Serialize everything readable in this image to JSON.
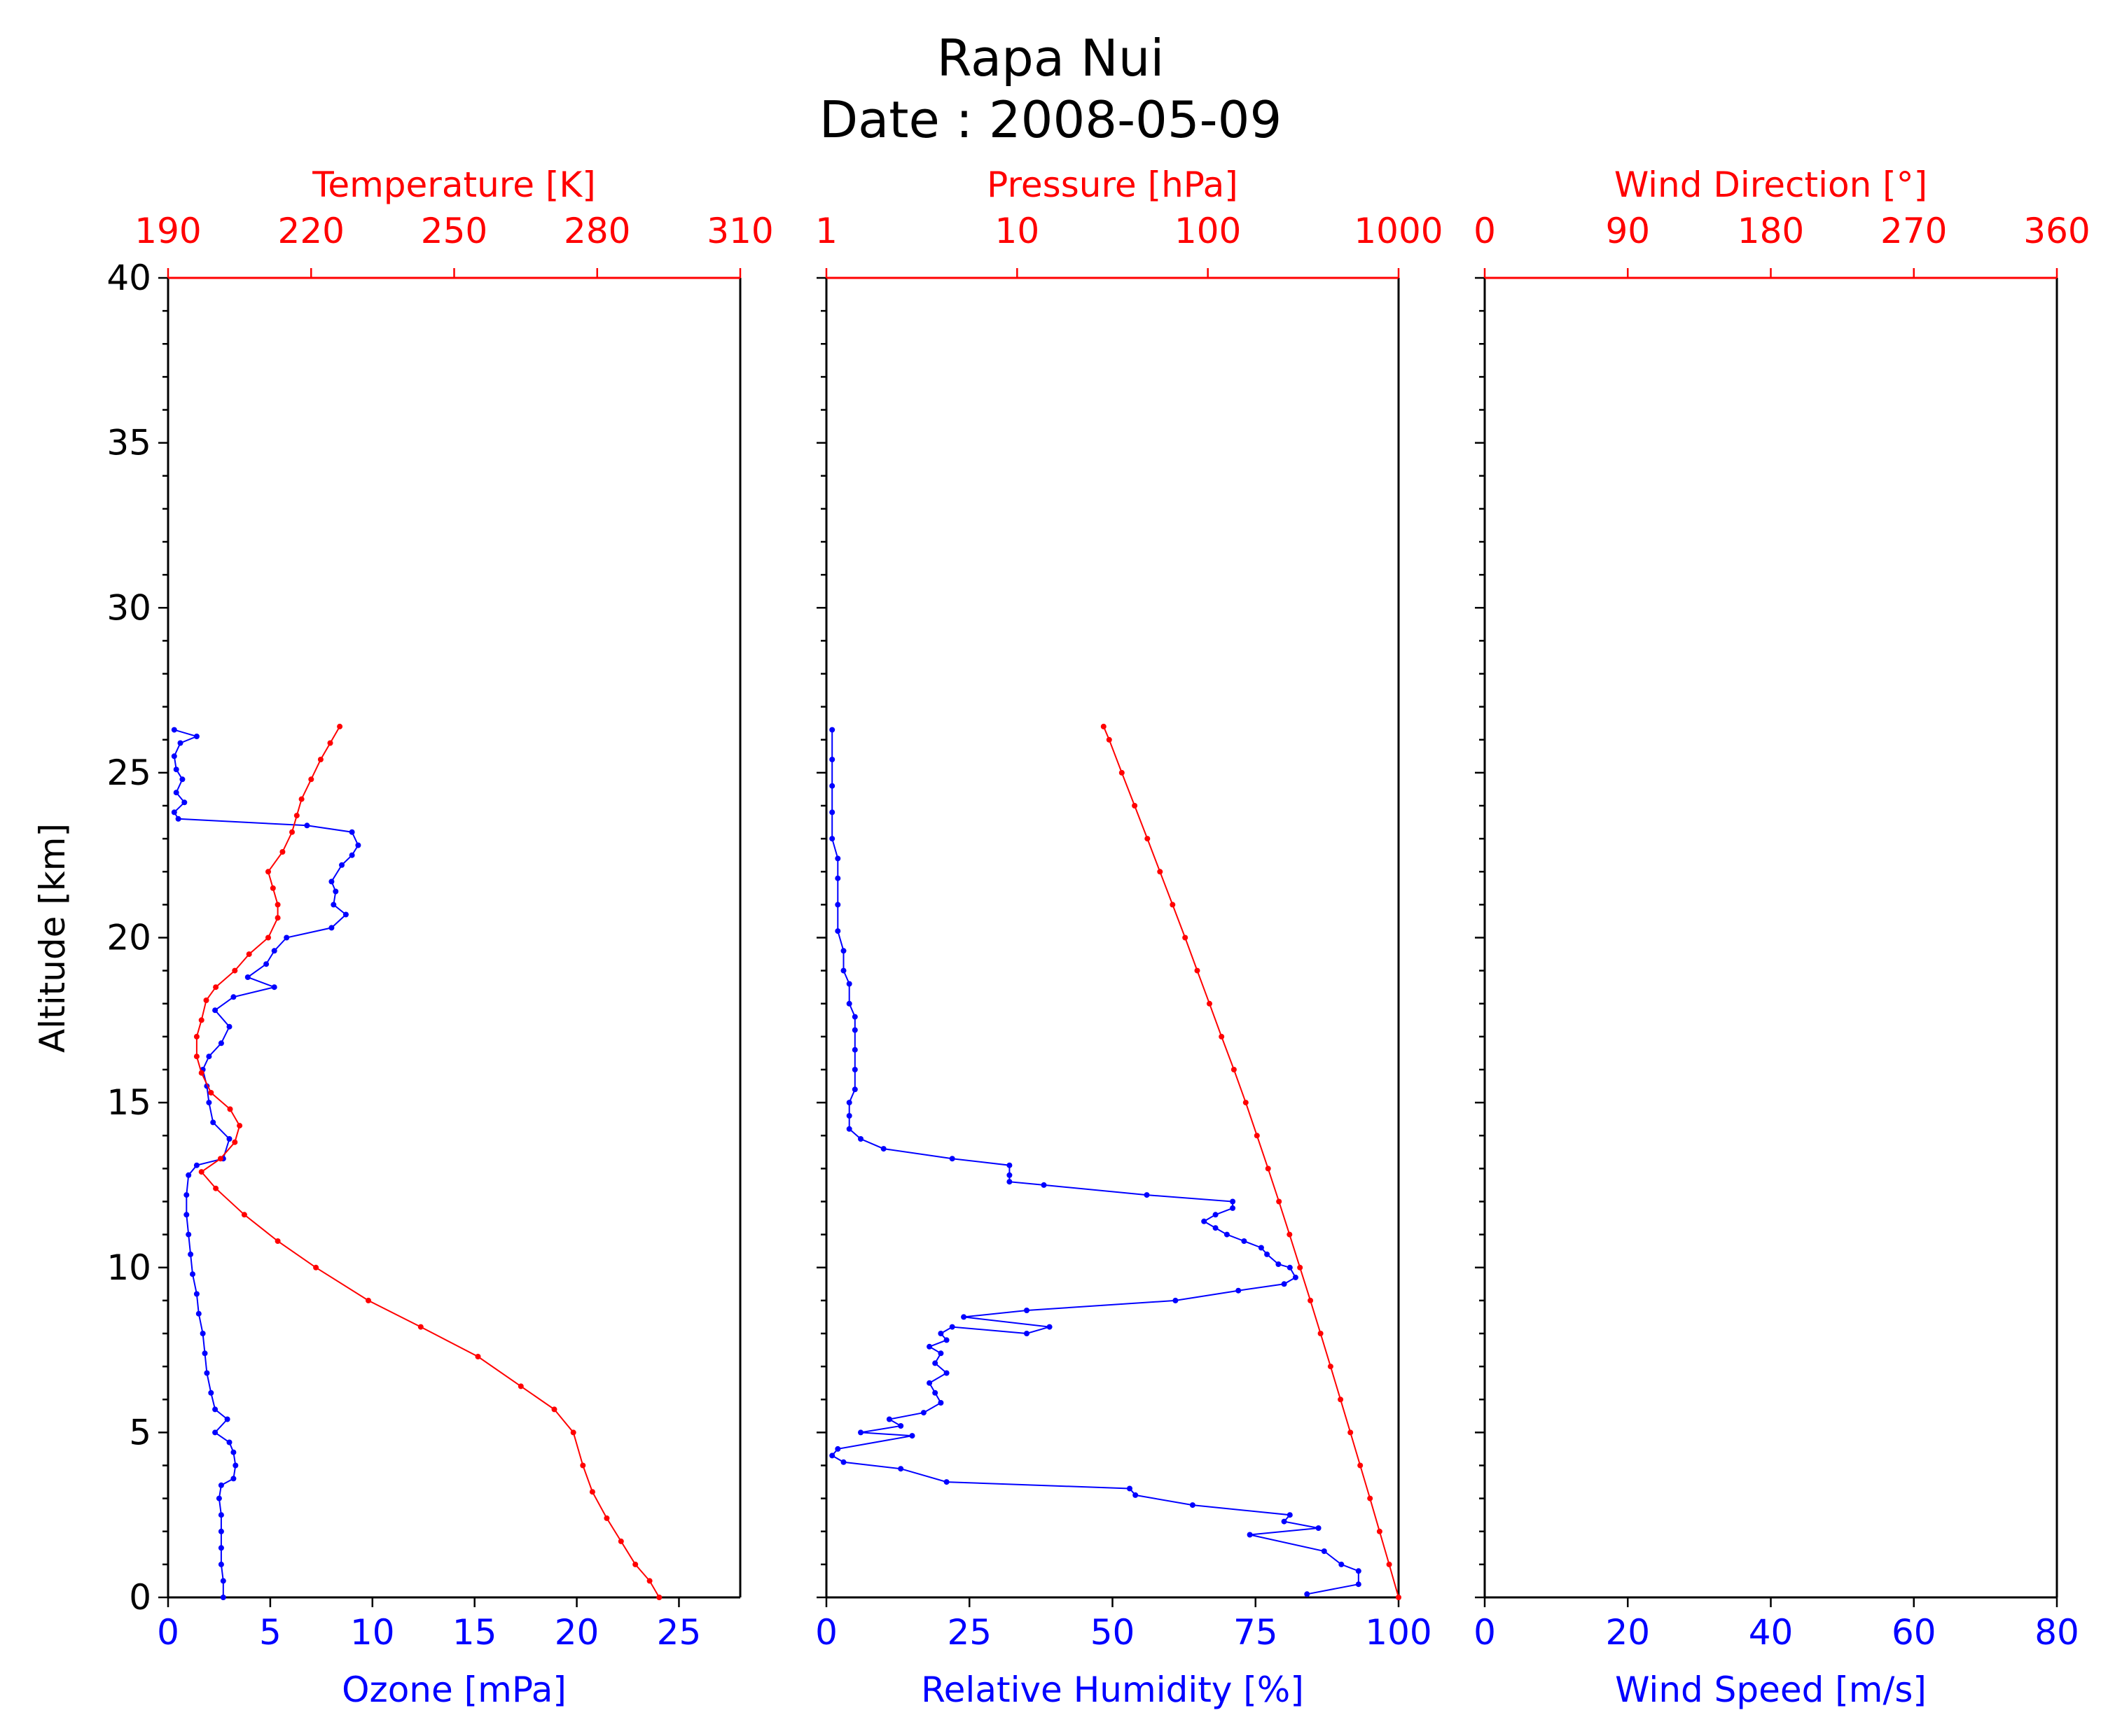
{
  "title_line1": "Rapa Nui",
  "title_line2": "Date : 2008-05-09",
  "colors": {
    "primary": "#0000ff",
    "secondary": "#ff0000",
    "axis": "#000000"
  },
  "chart_data": [
    {
      "type": "line",
      "panel": "ozone-temperature",
      "ylabel": "Altitude [km]",
      "ylim": [
        0,
        40
      ],
      "yticks": [
        0,
        5,
        10,
        15,
        20,
        25,
        30,
        35,
        40
      ],
      "bottom_axis": {
        "label": "Ozone [mPa]",
        "lim": [
          0,
          28
        ],
        "ticks": [
          0,
          5,
          10,
          15,
          20,
          25
        ],
        "color": "#0000ff"
      },
      "top_axis": {
        "label": "Temperature [K]",
        "lim": [
          190,
          310
        ],
        "ticks": [
          190,
          220,
          250,
          280,
          310
        ],
        "color": "#ff0000"
      },
      "series": [
        {
          "axis": "bottom",
          "color": "#0000ff",
          "points": [
            [
              2.7,
              0
            ],
            [
              2.7,
              0.5
            ],
            [
              2.6,
              1.0
            ],
            [
              2.6,
              1.5
            ],
            [
              2.6,
              2.0
            ],
            [
              2.6,
              2.5
            ],
            [
              2.5,
              3.0
            ],
            [
              2.6,
              3.4
            ],
            [
              3.2,
              3.6
            ],
            [
              3.3,
              4.0
            ],
            [
              3.2,
              4.4
            ],
            [
              3.0,
              4.7
            ],
            [
              2.3,
              5.0
            ],
            [
              2.9,
              5.4
            ],
            [
              2.3,
              5.7
            ],
            [
              2.1,
              6.2
            ],
            [
              1.9,
              6.8
            ],
            [
              1.8,
              7.4
            ],
            [
              1.7,
              8.0
            ],
            [
              1.5,
              8.6
            ],
            [
              1.4,
              9.2
            ],
            [
              1.2,
              9.8
            ],
            [
              1.1,
              10.4
            ],
            [
              1.0,
              11.0
            ],
            [
              0.9,
              11.6
            ],
            [
              0.9,
              12.2
            ],
            [
              1.0,
              12.8
            ],
            [
              1.4,
              13.1
            ],
            [
              2.7,
              13.3
            ],
            [
              3.0,
              13.9
            ],
            [
              2.2,
              14.4
            ],
            [
              2.0,
              15.0
            ],
            [
              1.9,
              15.5
            ],
            [
              1.7,
              16.0
            ],
            [
              2.0,
              16.4
            ],
            [
              2.6,
              16.8
            ],
            [
              3.0,
              17.3
            ],
            [
              2.3,
              17.8
            ],
            [
              3.2,
              18.2
            ],
            [
              5.2,
              18.5
            ],
            [
              3.9,
              18.8
            ],
            [
              4.8,
              19.2
            ],
            [
              5.2,
              19.6
            ],
            [
              5.8,
              20.0
            ],
            [
              8.0,
              20.3
            ],
            [
              8.7,
              20.7
            ],
            [
              8.1,
              21.0
            ],
            [
              8.2,
              21.4
            ],
            [
              8.0,
              21.7
            ],
            [
              8.5,
              22.2
            ],
            [
              9.0,
              22.5
            ],
            [
              9.3,
              22.8
            ],
            [
              9.0,
              23.2
            ],
            [
              6.8,
              23.4
            ],
            [
              0.5,
              23.6
            ],
            [
              0.3,
              23.8
            ],
            [
              0.8,
              24.1
            ],
            [
              0.4,
              24.4
            ],
            [
              0.7,
              24.8
            ],
            [
              0.4,
              25.1
            ],
            [
              0.3,
              25.5
            ],
            [
              0.6,
              25.9
            ],
            [
              1.4,
              26.1
            ],
            [
              0.3,
              26.3
            ]
          ]
        },
        {
          "axis": "top",
          "color": "#ff0000",
          "points": [
            [
              293,
              0
            ],
            [
              291,
              0.5
            ],
            [
              288,
              1.0
            ],
            [
              285,
              1.7
            ],
            [
              282,
              2.4
            ],
            [
              279,
              3.2
            ],
            [
              277,
              4.0
            ],
            [
              275,
              5.0
            ],
            [
              271,
              5.7
            ],
            [
              264,
              6.4
            ],
            [
              255,
              7.3
            ],
            [
              243,
              8.2
            ],
            [
              232,
              9.0
            ],
            [
              221,
              10.0
            ],
            [
              213,
              10.8
            ],
            [
              206,
              11.6
            ],
            [
              200,
              12.4
            ],
            [
              197,
              12.9
            ],
            [
              201,
              13.3
            ],
            [
              204,
              13.8
            ],
            [
              205,
              14.3
            ],
            [
              203,
              14.8
            ],
            [
              199,
              15.3
            ],
            [
              197,
              15.9
            ],
            [
              196,
              16.4
            ],
            [
              196,
              17.0
            ],
            [
              197,
              17.5
            ],
            [
              198,
              18.1
            ],
            [
              200,
              18.5
            ],
            [
              204,
              19.0
            ],
            [
              207,
              19.5
            ],
            [
              211,
              20.0
            ],
            [
              213,
              20.6
            ],
            [
              213,
              21.0
            ],
            [
              212,
              21.5
            ],
            [
              211,
              22.0
            ],
            [
              214,
              22.6
            ],
            [
              216,
              23.2
            ],
            [
              217,
              23.7
            ],
            [
              218,
              24.2
            ],
            [
              220,
              24.8
            ],
            [
              222,
              25.4
            ],
            [
              224,
              25.9
            ],
            [
              226,
              26.4
            ]
          ]
        }
      ]
    },
    {
      "type": "line",
      "panel": "humidity-pressure",
      "ylim": [
        0,
        40
      ],
      "bottom_axis": {
        "label": "Relative Humidity [%]",
        "lim": [
          0,
          100
        ],
        "ticks": [
          0,
          25,
          50,
          75,
          100
        ],
        "color": "#0000ff"
      },
      "top_axis": {
        "label": "Pressure [hPa]",
        "lim": [
          1,
          1000
        ],
        "scale": "log",
        "ticks": [
          "1",
          "10",
          "100",
          "1000"
        ],
        "color": "#ff0000"
      },
      "series": [
        {
          "axis": "bottom",
          "color": "#0000ff",
          "points": [
            [
              84,
              0.1
            ],
            [
              93,
              0.4
            ],
            [
              93,
              0.8
            ],
            [
              90,
              1.0
            ],
            [
              87,
              1.4
            ],
            [
              74,
              1.9
            ],
            [
              86,
              2.1
            ],
            [
              80,
              2.3
            ],
            [
              81,
              2.5
            ],
            [
              64,
              2.8
            ],
            [
              54,
              3.1
            ],
            [
              53,
              3.3
            ],
            [
              21,
              3.5
            ],
            [
              13,
              3.9
            ],
            [
              3,
              4.1
            ],
            [
              1,
              4.3
            ],
            [
              2,
              4.5
            ],
            [
              15,
              4.9
            ],
            [
              6,
              5.0
            ],
            [
              13,
              5.2
            ],
            [
              11,
              5.4
            ],
            [
              17,
              5.6
            ],
            [
              20,
              5.9
            ],
            [
              19,
              6.2
            ],
            [
              18,
              6.5
            ],
            [
              21,
              6.8
            ],
            [
              19,
              7.1
            ],
            [
              20,
              7.4
            ],
            [
              18,
              7.6
            ],
            [
              21,
              7.8
            ],
            [
              20,
              8.0
            ],
            [
              22,
              8.2
            ],
            [
              35,
              8.0
            ],
            [
              39,
              8.2
            ],
            [
              24,
              8.5
            ],
            [
              35,
              8.7
            ],
            [
              61,
              9.0
            ],
            [
              72,
              9.3
            ],
            [
              80,
              9.5
            ],
            [
              82,
              9.7
            ],
            [
              81,
              10.0
            ],
            [
              79,
              10.1
            ],
            [
              77,
              10.4
            ],
            [
              76,
              10.6
            ],
            [
              73,
              10.8
            ],
            [
              70,
              11.0
            ],
            [
              68,
              11.2
            ],
            [
              66,
              11.4
            ],
            [
              68,
              11.6
            ],
            [
              71,
              11.8
            ],
            [
              71,
              12.0
            ],
            [
              56,
              12.2
            ],
            [
              38,
              12.5
            ],
            [
              32,
              12.6
            ],
            [
              32,
              12.8
            ],
            [
              32,
              13.1
            ],
            [
              22,
              13.3
            ],
            [
              10,
              13.6
            ],
            [
              6,
              13.9
            ],
            [
              4,
              14.2
            ],
            [
              4,
              14.6
            ],
            [
              4,
              15.0
            ],
            [
              5,
              15.4
            ],
            [
              5,
              16.0
            ],
            [
              5,
              16.6
            ],
            [
              5,
              17.2
            ],
            [
              5,
              17.6
            ],
            [
              4,
              18.0
            ],
            [
              4,
              18.6
            ],
            [
              3,
              19.0
            ],
            [
              3,
              19.6
            ],
            [
              2,
              20.2
            ],
            [
              2,
              21.0
            ],
            [
              2,
              21.8
            ],
            [
              2,
              22.4
            ],
            [
              1,
              23.0
            ],
            [
              1,
              23.8
            ],
            [
              1,
              24.6
            ],
            [
              1,
              25.4
            ],
            [
              1,
              26.3
            ]
          ]
        },
        {
          "axis": "top",
          "color": "#ff0000",
          "points": [
            [
              1000,
              0
            ],
            [
              893,
              1
            ],
            [
              795,
              2
            ],
            [
              708,
              3
            ],
            [
              629,
              4
            ],
            [
              559,
              5
            ],
            [
              496,
              6
            ],
            [
              440,
              7
            ],
            [
              390,
              8
            ],
            [
              345,
              9
            ],
            [
              304,
              10
            ],
            [
              268,
              11
            ],
            [
              236,
              12
            ],
            [
              207,
              13
            ],
            [
              181,
              14
            ],
            [
              158,
              15
            ],
            [
              137,
              16
            ],
            [
              118,
              17
            ],
            [
              102,
              18
            ],
            [
              88,
              19
            ],
            [
              76,
              20
            ],
            [
              65.3,
              21
            ],
            [
              56.1,
              22
            ],
            [
              48.2,
              23
            ],
            [
              41.3,
              24
            ],
            [
              35.4,
              25
            ],
            [
              30.4,
              26
            ],
            [
              28.4,
              26.4
            ]
          ]
        }
      ]
    },
    {
      "type": "line",
      "panel": "wind",
      "ylim": [
        0,
        40
      ],
      "bottom_axis": {
        "label": "Wind Speed [m/s]",
        "lim": [
          0,
          80
        ],
        "ticks": [
          0,
          20,
          40,
          60,
          80
        ],
        "color": "#0000ff"
      },
      "top_axis": {
        "label": "Wind Direction [°]",
        "lim": [
          0,
          360
        ],
        "ticks": [
          0,
          90,
          180,
          270,
          360
        ],
        "color": "#ff0000"
      },
      "series": []
    }
  ]
}
